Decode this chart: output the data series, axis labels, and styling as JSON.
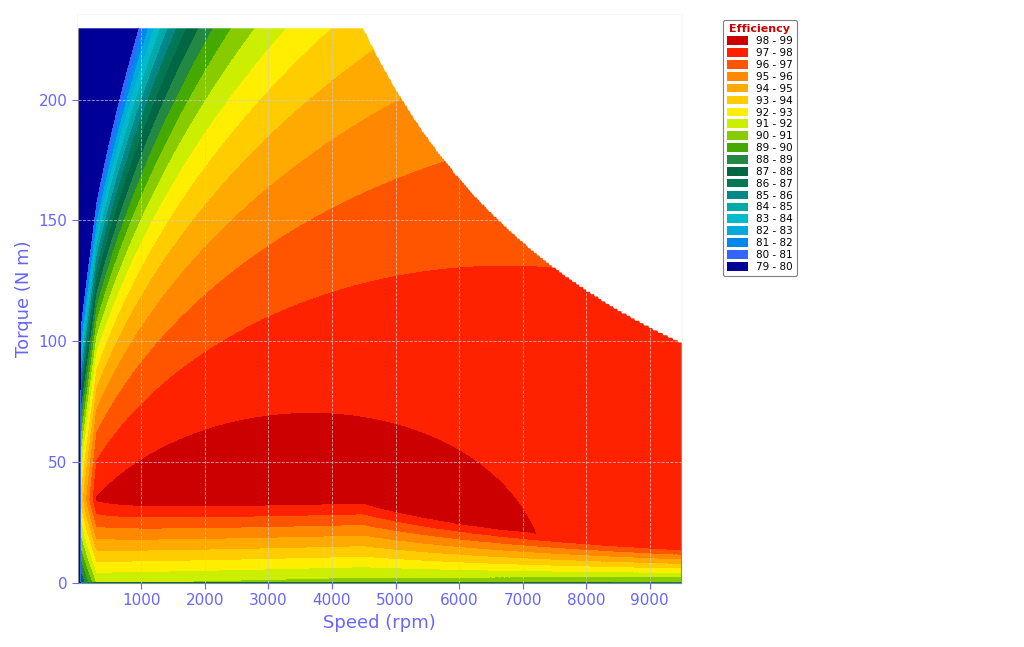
{
  "xlabel": "Speed (rpm)",
  "ylabel": "Torque (N m)",
  "xlabel_color": "#6666ff",
  "ylabel_color": "#6666ff",
  "tick_color": "#6666ff",
  "speed_min": 0,
  "speed_max": 9500,
  "torque_min": 0,
  "torque_max": 235,
  "base_speed": 4500,
  "max_torque_base": 230,
  "legend_labels": [
    "98 - 99",
    "97 - 98",
    "96 - 97",
    "95 - 96",
    "94 - 95",
    "93 - 94",
    "92 - 93",
    "91 - 92",
    "90 - 91",
    "89 - 90",
    "88 - 89",
    "87 - 88",
    "86 - 87",
    "85 - 86",
    "84 - 85",
    "83 - 84",
    "82 - 83",
    "81 - 82",
    "80 - 81",
    "79 - 80"
  ],
  "legend_colors": [
    "#CC0000",
    "#FF2200",
    "#FF5500",
    "#FF8800",
    "#FFAA00",
    "#FFCC00",
    "#FFEE00",
    "#CCEE00",
    "#88CC00",
    "#44AA00",
    "#228844",
    "#006644",
    "#007755",
    "#008888",
    "#00AAAA",
    "#00BBCC",
    "#00AADD",
    "#0088EE",
    "#3366FF",
    "#000099"
  ],
  "cmap_colors": [
    "#000099",
    "#3366FF",
    "#0088EE",
    "#00AADD",
    "#00BBCC",
    "#00AAAA",
    "#008888",
    "#007755",
    "#006644",
    "#228844",
    "#44AA00",
    "#88CC00",
    "#CCEE00",
    "#FFEE00",
    "#FFCC00",
    "#FFAA00",
    "#FF8800",
    "#FF5500",
    "#FF2200",
    "#CC0000"
  ]
}
